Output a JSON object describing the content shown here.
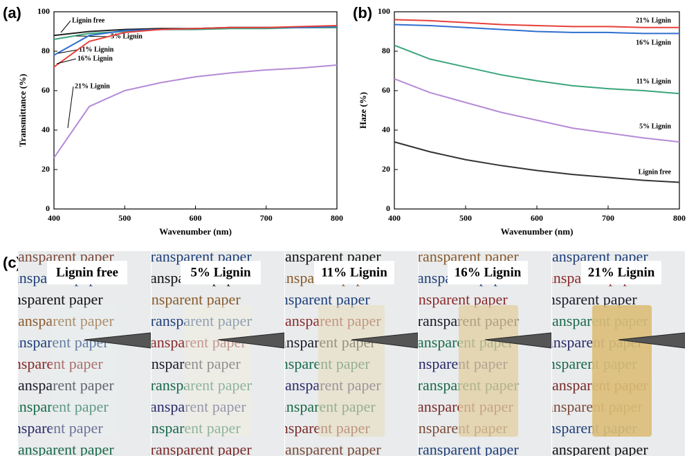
{
  "chart_data": [
    {
      "type": "line",
      "panel": "(a)",
      "x_label": "Wavenumber (nm)",
      "y_label": "Transmittance (%)",
      "x": [
        400,
        450,
        500,
        550,
        600,
        650,
        700,
        750,
        800
      ],
      "xlim": [
        400,
        800
      ],
      "xticks": [
        400,
        500,
        600,
        700,
        800
      ],
      "ylim": [
        0,
        100
      ],
      "yticks": [
        0,
        20,
        40,
        60,
        80,
        100
      ],
      "series": [
        {
          "name": "Lignin free",
          "color": "#222222",
          "values": [
            88,
            90,
            91,
            91.5,
            91.5,
            92,
            92,
            92,
            92
          ]
        },
        {
          "name": "5% Lignin",
          "color": "#3aa57a",
          "values": [
            86,
            89,
            90,
            91,
            91,
            91.5,
            91.5,
            92,
            92
          ]
        },
        {
          "name": "11% Lignin",
          "color": "#2f6fcf",
          "values": [
            78,
            88,
            90.5,
            91,
            91.5,
            92,
            92,
            92,
            92.5
          ]
        },
        {
          "name": "16% Lignin",
          "color": "#e5403a",
          "values": [
            72,
            85,
            89.5,
            91,
            91.5,
            92,
            92,
            92.5,
            93
          ]
        },
        {
          "name": "21% Lignin",
          "color": "#b58ad6",
          "values": [
            26,
            52,
            60,
            64,
            67,
            69,
            70.5,
            71.5,
            73
          ]
        }
      ]
    },
    {
      "type": "line",
      "panel": "(b)",
      "x_label": "Wavenumber (nm)",
      "y_label": "Haze (%)",
      "x": [
        400,
        450,
        500,
        550,
        600,
        650,
        700,
        750,
        800
      ],
      "xlim": [
        400,
        800
      ],
      "xticks": [
        400,
        500,
        600,
        700,
        800
      ],
      "ylim": [
        0,
        100
      ],
      "yticks": [
        0,
        20,
        40,
        60,
        80,
        100
      ],
      "series": [
        {
          "name": "21% Lignin",
          "color": "#e5403a",
          "values": [
            96,
            95.5,
            94.5,
            93.5,
            93,
            92.5,
            92.5,
            92,
            92
          ]
        },
        {
          "name": "16% Lignin",
          "color": "#2f6fcf",
          "values": [
            93.5,
            93,
            92,
            91,
            90,
            89.5,
            89.5,
            89,
            89
          ]
        },
        {
          "name": "11% Lignin",
          "color": "#3aa57a",
          "values": [
            83,
            76,
            72,
            68,
            65,
            62.5,
            61,
            60,
            58.5
          ]
        },
        {
          "name": "5% Lignin",
          "color": "#b58ad6",
          "values": [
            66,
            59,
            54,
            49,
            45,
            41,
            38.5,
            36,
            34
          ]
        },
        {
          "name": "Lignin free",
          "color": "#333333",
          "values": [
            34,
            29,
            25,
            22,
            19.5,
            17.5,
            16,
            14.5,
            13.5
          ]
        }
      ]
    }
  ],
  "photos": {
    "panel": "(c)",
    "background_text": "Transparent paper",
    "samples": [
      "Lignin free",
      "5% Lignin",
      "11% Lignin",
      "16% Lignin",
      "21% Lignin"
    ]
  }
}
